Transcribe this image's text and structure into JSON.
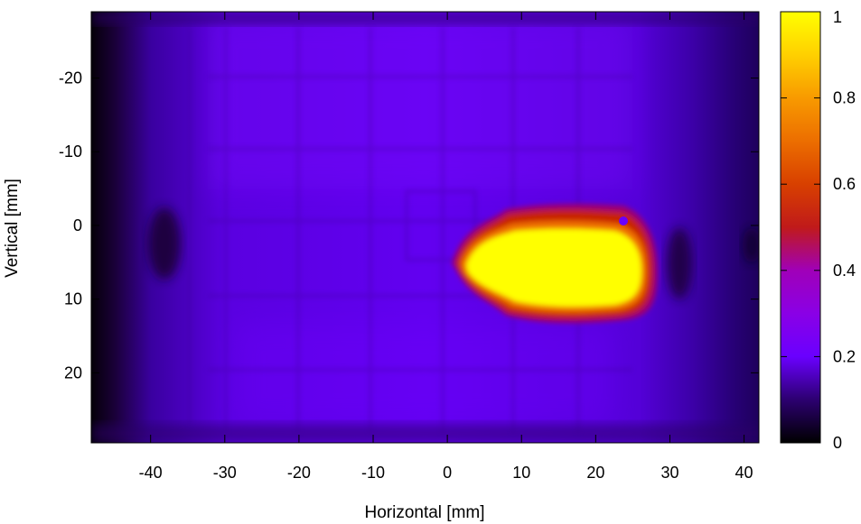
{
  "chart_data": {
    "type": "heatmap",
    "title": "",
    "xlabel": "Horizontal [mm]",
    "ylabel": "Vertical [mm]",
    "xlim": [
      -48,
      42
    ],
    "ylim": [
      -29,
      29.5
    ],
    "y_inverted": true,
    "x_ticks": [
      -40,
      -30,
      -20,
      -10,
      0,
      10,
      20,
      30,
      40
    ],
    "y_ticks": [
      -20,
      -10,
      0,
      10,
      20
    ],
    "colorbar": {
      "range": [
        0,
        1
      ],
      "ticks": [
        0,
        0.2,
        0.4,
        0.6,
        0.8,
        1
      ],
      "tick_labels": [
        "0",
        "0.2",
        "0.4",
        "0.6",
        "0.8",
        "1"
      ],
      "palette": [
        {
          "v": 0.0,
          "color": "#000000"
        },
        {
          "v": 0.1,
          "color": "#2c0070"
        },
        {
          "v": 0.2,
          "color": "#6a00ff"
        },
        {
          "v": 0.3,
          "color": "#8a00e6"
        },
        {
          "v": 0.4,
          "color": "#a000b8"
        },
        {
          "v": 0.5,
          "color": "#c01a1a"
        },
        {
          "v": 0.6,
          "color": "#d84000"
        },
        {
          "v": 0.7,
          "color": "#ec6e00"
        },
        {
          "v": 0.8,
          "color": "#f89a00"
        },
        {
          "v": 0.9,
          "color": "#ffd000"
        },
        {
          "v": 1.0,
          "color": "#ffff00"
        }
      ]
    },
    "hotspot": {
      "x_range": [
        3,
        27
      ],
      "y_range": [
        0,
        12
      ],
      "value": 1.0
    },
    "background_level": 0.17
  }
}
